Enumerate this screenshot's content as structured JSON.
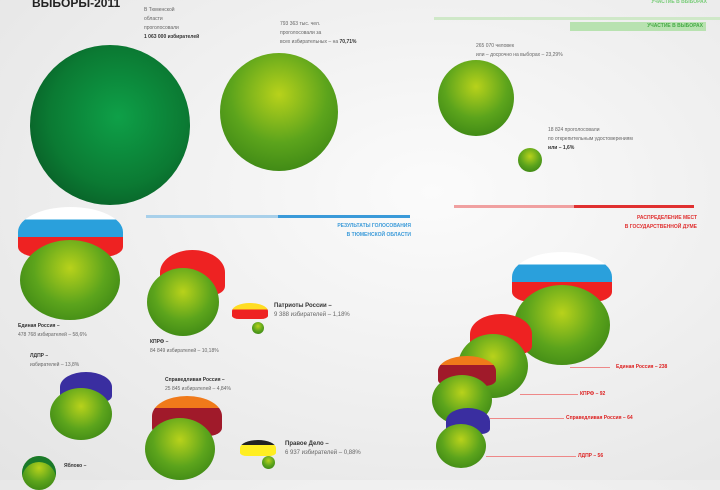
{
  "title": "ВЫБОРЫ-2011",
  "turnout": {
    "header": "УЧАСТИЕ В ВЫБОРАХ",
    "region_text": [
      "В Тюменской",
      "области",
      "проголосовали",
      "1 063 000 избирателей"
    ],
    "votes_text": [
      "793 363 тыс. чел.",
      "проголосовали за",
      "всех избирательных – на",
      "70,71%"
    ],
    "early_text": [
      "265 070 человек",
      "или – досрочно на выборах – 23,29%"
    ],
    "absentee_text": [
      "18 824 проголосовали",
      "по открепительным удостоверениям",
      "или – 1,6%"
    ]
  },
  "results": {
    "header": [
      "РЕЗУЛЬТАТЫ ГОЛОСОВАНИЯ",
      "В ТЮМЕНСКОЙ ОБЛАСТИ"
    ],
    "parties": [
      {
        "name": "Единая Россия –",
        "detail": "478 768 избирателей – 58,6%"
      },
      {
        "name": "КПРФ –",
        "detail": "84 849 избирателей – 10,18%"
      },
      {
        "name": "Патриоты России –",
        "detail": "9 388 избирателей – 1,18%"
      },
      {
        "name": "ЛДПР –",
        "detail": "избирателей – 13,8%"
      },
      {
        "name": "Справедливая Россия –",
        "detail": "25 845 избирателей – 4,84%"
      },
      {
        "name": "Правое Дело –",
        "detail": "6 937 избирателей – 0,88%"
      },
      {
        "name": "Яблоко –",
        "detail": ""
      }
    ]
  },
  "seats": {
    "header": [
      "РАСПРЕДЕЛЕНИЕ МЕСТ",
      "В ГОСУДАРСТВЕННОЙ ДУМЕ"
    ],
    "items": [
      {
        "label": "Единая Россия – 238",
        "value": 238
      },
      {
        "label": "КПРФ – 92",
        "value": 92
      },
      {
        "label": "Справедливая Россия – 64",
        "value": 64
      },
      {
        "label": "ЛДПР – 56",
        "value": 56
      }
    ]
  },
  "colors": {
    "green": "#5ca41c",
    "blue_line": "#3a9ad9",
    "red_line": "#e03030",
    "green_line": "#8cd080"
  }
}
